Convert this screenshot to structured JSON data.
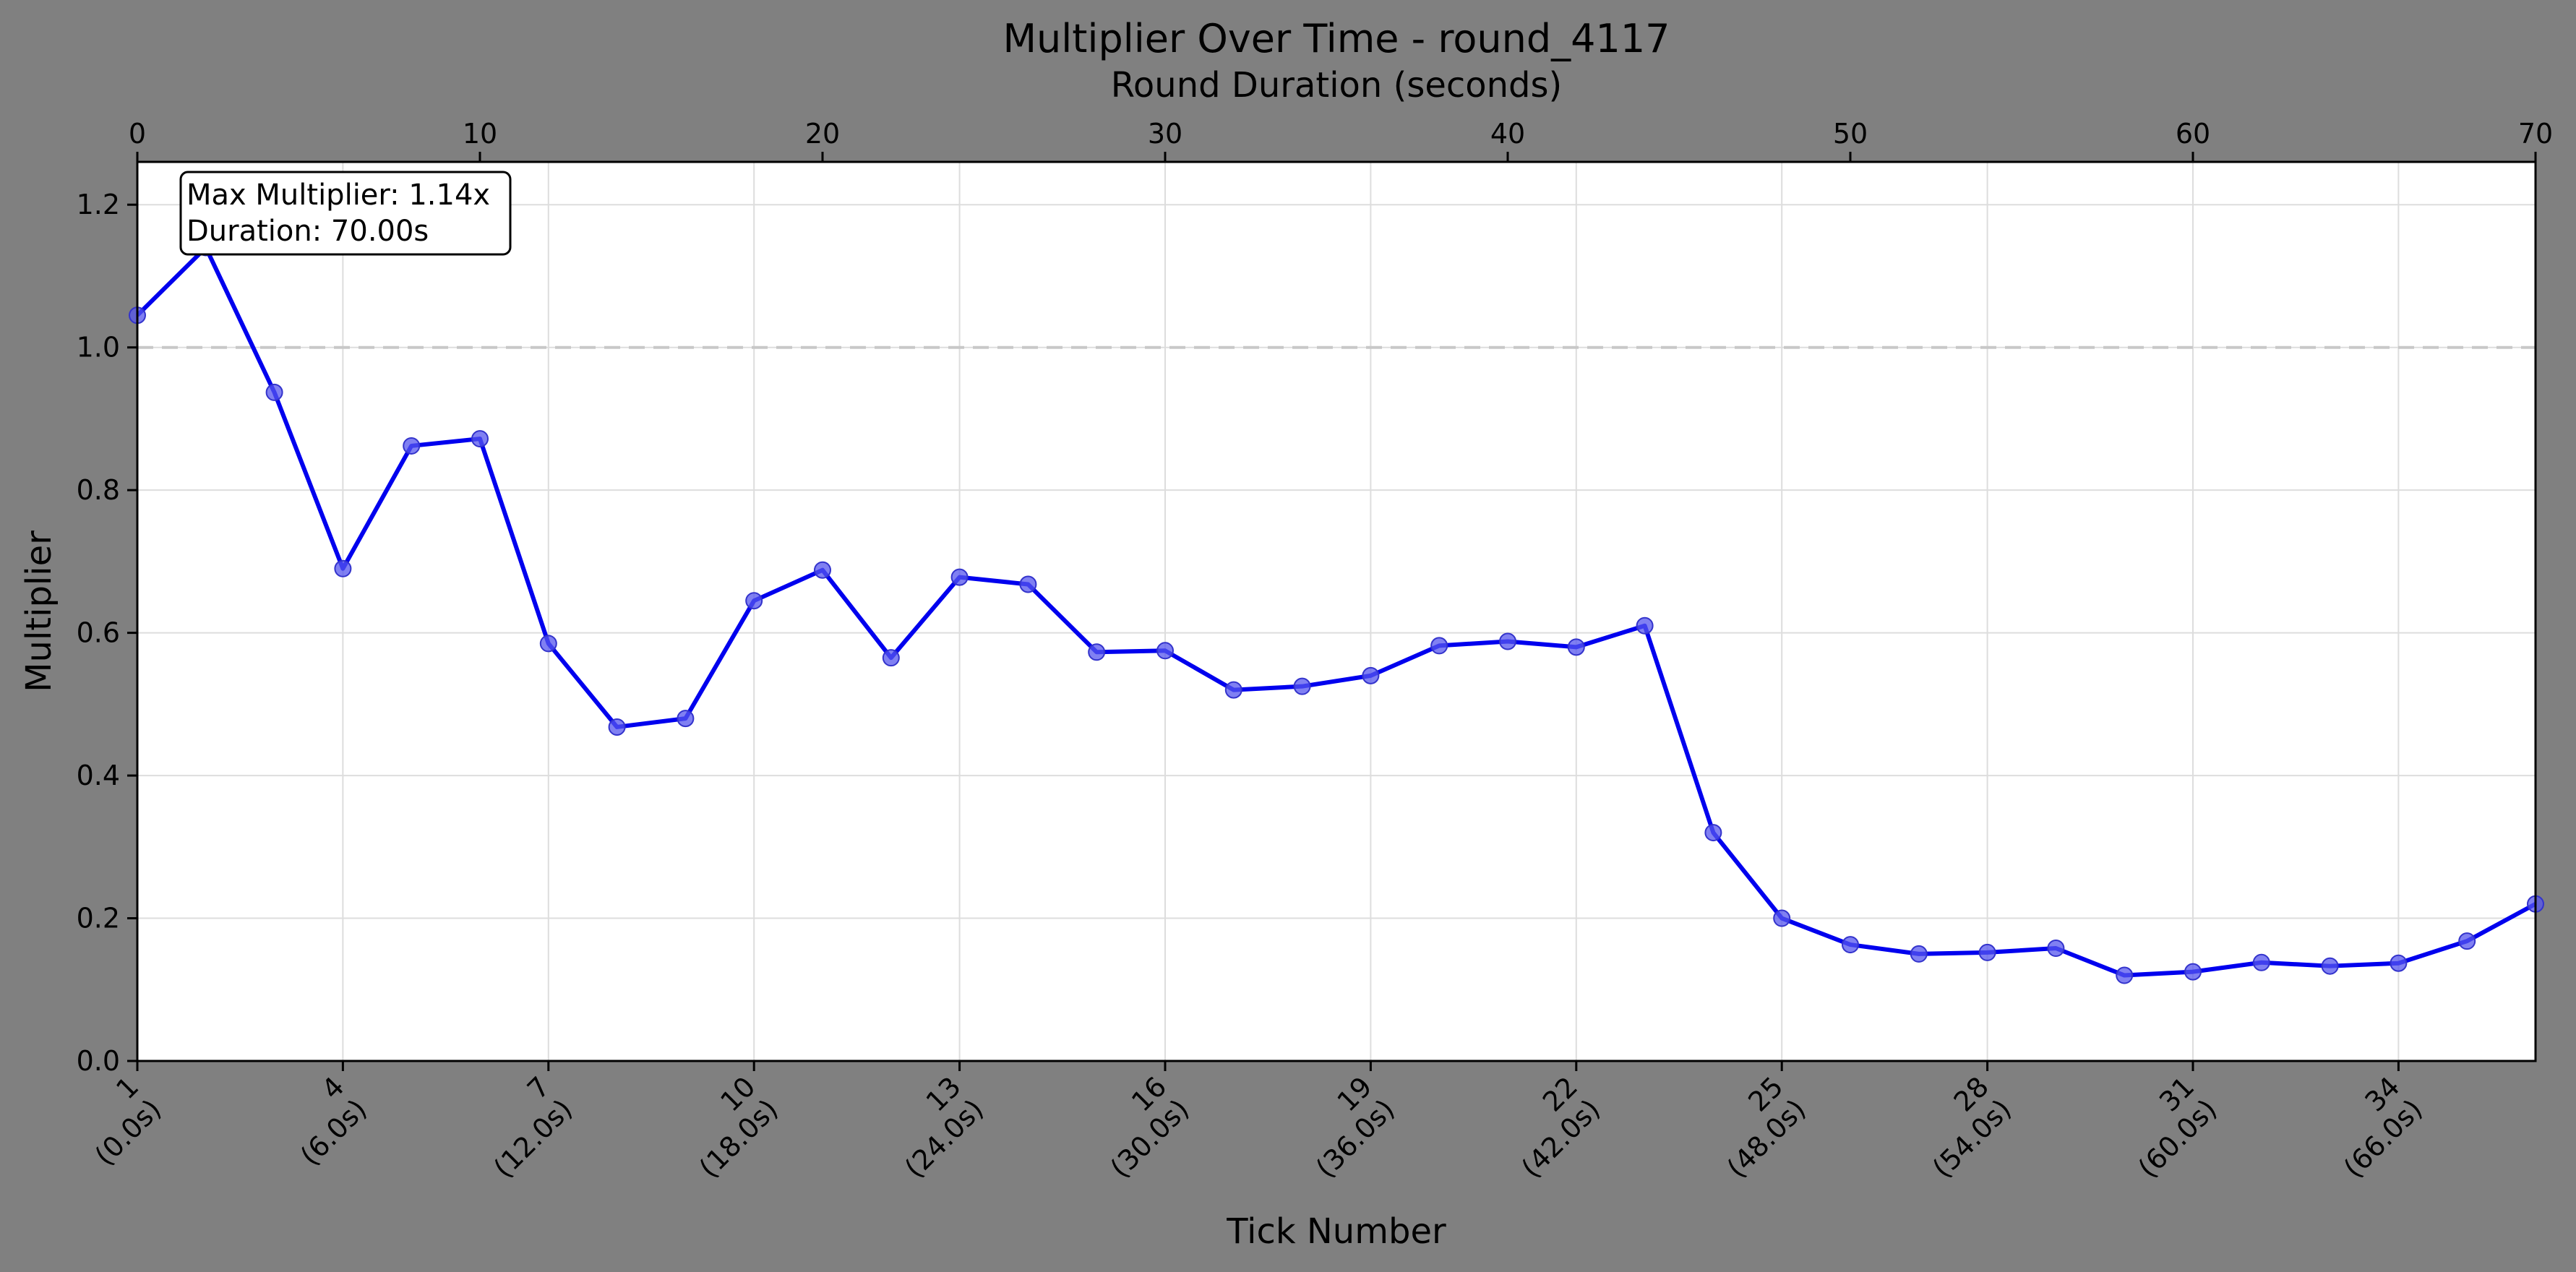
{
  "chart_data": {
    "type": "line",
    "title": "Multiplier Over Time - round_4117",
    "xlabel": "Tick Number",
    "ylabel": "Multiplier",
    "x2label": "Round Duration (seconds)",
    "x": [
      1,
      2,
      3,
      4,
      5,
      6,
      7,
      8,
      9,
      10,
      11,
      12,
      13,
      14,
      15,
      16,
      17,
      18,
      19,
      20,
      21,
      22,
      23,
      24,
      25,
      26,
      27,
      28,
      29,
      30,
      31,
      32,
      33,
      34,
      35,
      36
    ],
    "series": [
      {
        "values": [
          1.045,
          1.14,
          0.937,
          0.69,
          0.862,
          0.872,
          0.585,
          0.468,
          0.48,
          0.645,
          0.688,
          0.565,
          0.678,
          0.668,
          0.573,
          0.575,
          0.52,
          0.525,
          0.54,
          0.582,
          0.588,
          0.58,
          0.61,
          0.32,
          0.2,
          0.163,
          0.15,
          0.152,
          0.158,
          0.12,
          0.125,
          0.138,
          0.133,
          0.137,
          0.168,
          0.22
        ],
        "color": "#0000ee"
      }
    ],
    "xlim": [
      1,
      36
    ],
    "ylim": [
      0,
      1.26
    ],
    "x_ticks": [
      1,
      4,
      7,
      10,
      13,
      16,
      19,
      22,
      25,
      28,
      31,
      34
    ],
    "x_tick_labels": [
      [
        "1",
        "(0.0s)"
      ],
      [
        "4",
        "(6.0s)"
      ],
      [
        "7",
        "(12.0s)"
      ],
      [
        "10",
        "(18.0s)"
      ],
      [
        "13",
        "(24.0s)"
      ],
      [
        "16",
        "(30.0s)"
      ],
      [
        "19",
        "(36.0s)"
      ],
      [
        "22",
        "(42.0s)"
      ],
      [
        "25",
        "(48.0s)"
      ],
      [
        "28",
        "(54.0s)"
      ],
      [
        "31",
        "(60.0s)"
      ],
      [
        "34",
        "(66.0s)"
      ]
    ],
    "y_ticks": [
      0.0,
      0.2,
      0.4,
      0.6,
      0.8,
      1.0,
      1.2
    ],
    "y_tick_labels": [
      "0.0",
      "0.2",
      "0.4",
      "0.6",
      "0.8",
      "1.0",
      "1.2"
    ],
    "x2_range": [
      0,
      70
    ],
    "x2_ticks": [
      0,
      10,
      20,
      30,
      40,
      50,
      60,
      70
    ],
    "x2_tick_labels": [
      "0",
      "10",
      "20",
      "30",
      "40",
      "50",
      "60",
      "70"
    ],
    "reference_line": 1.0,
    "grid": true,
    "annotation": [
      "Max Multiplier: 1.14x",
      "Duration: 70.00s"
    ],
    "colors": {
      "background": "#808080",
      "plot_bg": "#ffffff",
      "line": "#0000ee",
      "marker": "#5555ee",
      "grid": "#dddddd",
      "reference": "#c8c8c8"
    }
  }
}
